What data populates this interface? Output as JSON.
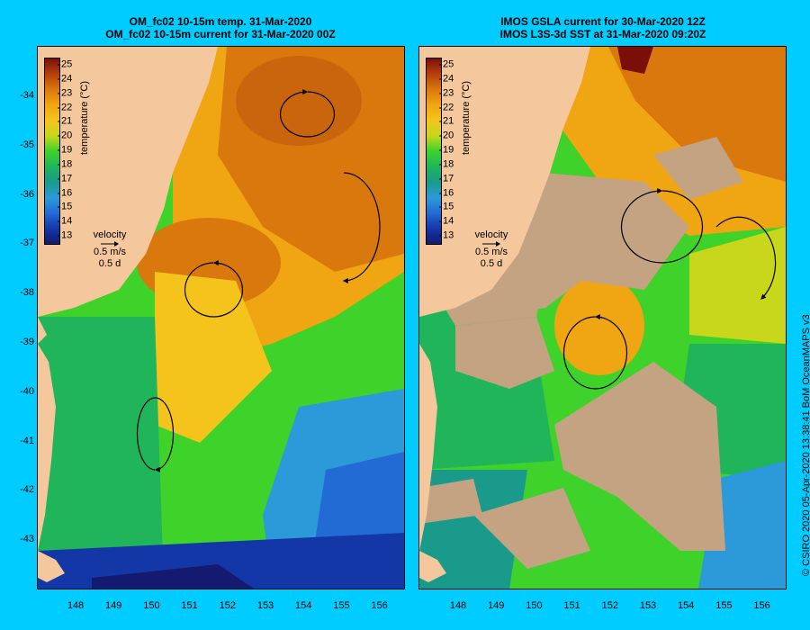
{
  "titles": {
    "left_line1": "OM_fc02 10-15m temp. 31-Mar-2020",
    "left_line2": "OM_fc02 10-15m current for 31-Mar-2020 00Z",
    "right_line1": "IMOS GSLA current for 30-Mar-2020 12Z",
    "right_line2": "IMOS L3S-3d SST at 31-Mar-2020 09:20Z"
  },
  "colorbar": {
    "ticks": [
      "25",
      "24",
      "23",
      "22",
      "21",
      "20",
      "19",
      "18",
      "17",
      "16",
      "15",
      "14",
      "13"
    ],
    "unit_label": "temperature (°C)",
    "colors": [
      "#7a0f0a",
      "#b5400c",
      "#d9780d",
      "#f0a512",
      "#f4c41d",
      "#c8d61c",
      "#3ed22b",
      "#20b55a",
      "#1a9a8a",
      "#2c9ad8",
      "#236bd4",
      "#1437a8",
      "#141a70"
    ]
  },
  "velocity_legend": {
    "title": "velocity",
    "scale": "0.5 m/s",
    "duration": "0.5 d"
  },
  "axes": {
    "lat_labels": [
      "-34",
      "-35",
      "-36",
      "-37",
      "-38",
      "-39",
      "-40",
      "-41",
      "-42",
      "-43"
    ],
    "lon_labels": [
      "148",
      "149",
      "150",
      "151",
      "152",
      "153",
      "154",
      "155",
      "156"
    ]
  },
  "credit": "© CSIRO 2020   05-Apr-2020 13:38:41 BoM OceanMAPS v3",
  "colors": {
    "background": "#00ccff",
    "land": "#f5c79c",
    "cloud_mask": "#c4a383"
  }
}
